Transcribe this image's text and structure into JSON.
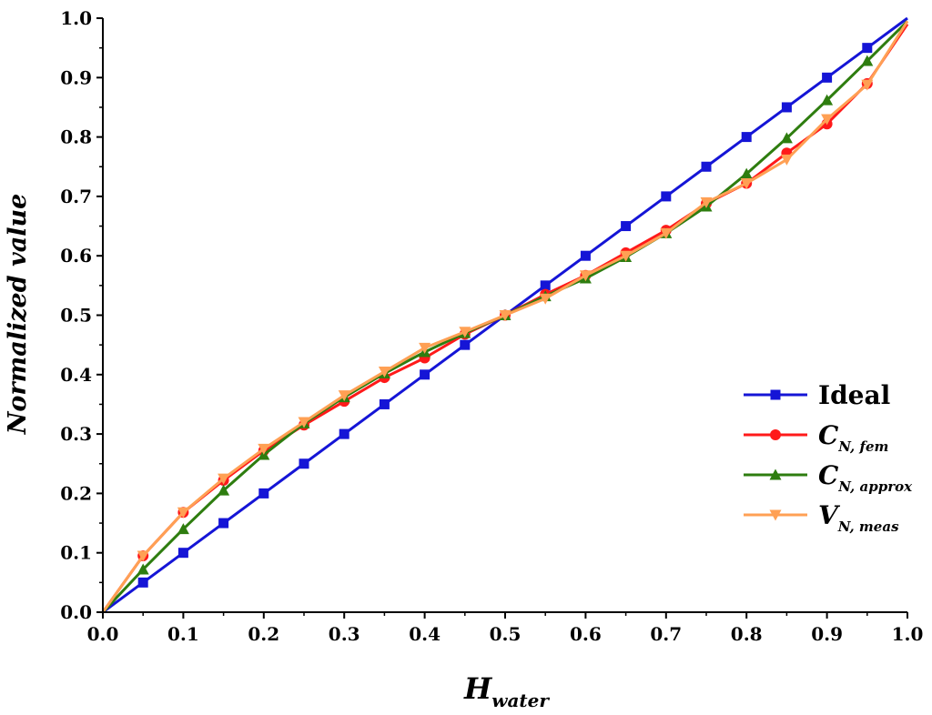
{
  "chart_data": {
    "type": "line",
    "xlabel": {
      "main": "H",
      "sub": "water"
    },
    "ylabel": "Normalized value",
    "xlim": [
      0,
      1
    ],
    "ylim": [
      0,
      1
    ],
    "xticks": [
      "0.0",
      "0.1",
      "0.2",
      "0.3",
      "0.4",
      "0.5",
      "0.6",
      "0.7",
      "0.8",
      "0.9",
      "1.0"
    ],
    "yticks": [
      "0.0",
      "0.1",
      "0.2",
      "0.3",
      "0.4",
      "0.5",
      "0.6",
      "0.7",
      "0.8",
      "0.9",
      "1.0"
    ],
    "grid": false,
    "legend_position": "bottom-right",
    "series": [
      {
        "key": "ideal",
        "legend": {
          "main": "Ideal",
          "sub": ""
        },
        "color": "#1515d6",
        "marker": "square",
        "x": [
          0,
          0.05,
          0.1,
          0.15,
          0.2,
          0.25,
          0.3,
          0.35,
          0.4,
          0.45,
          0.5,
          0.55,
          0.6,
          0.65,
          0.7,
          0.75,
          0.8,
          0.85,
          0.9,
          0.95,
          1.0
        ],
        "y": [
          0,
          0.05,
          0.1,
          0.15,
          0.2,
          0.25,
          0.3,
          0.35,
          0.4,
          0.45,
          0.5,
          0.55,
          0.6,
          0.65,
          0.7,
          0.75,
          0.8,
          0.85,
          0.9,
          0.95,
          1.0
        ]
      },
      {
        "key": "cn-fem",
        "legend": {
          "main": "C",
          "sub": "N, fem"
        },
        "color": "#ff1a1a",
        "marker": "circle",
        "x": [
          0,
          0.05,
          0.1,
          0.15,
          0.2,
          0.25,
          0.3,
          0.35,
          0.4,
          0.45,
          0.5,
          0.55,
          0.6,
          0.65,
          0.7,
          0.75,
          0.8,
          0.85,
          0.9,
          0.95,
          1.0
        ],
        "y": [
          0,
          0.095,
          0.168,
          0.222,
          0.272,
          0.315,
          0.355,
          0.395,
          0.428,
          0.468,
          0.5,
          0.535,
          0.567,
          0.605,
          0.643,
          0.688,
          0.722,
          0.773,
          0.822,
          0.89,
          0.99
        ]
      },
      {
        "key": "cn-approx",
        "legend": {
          "main": "C",
          "sub": "N, approx"
        },
        "color": "#2e7d0f",
        "marker": "triangle-up",
        "x": [
          0,
          0.05,
          0.1,
          0.15,
          0.2,
          0.25,
          0.3,
          0.35,
          0.4,
          0.45,
          0.5,
          0.55,
          0.6,
          0.65,
          0.7,
          0.75,
          0.8,
          0.85,
          0.9,
          0.95,
          1.0
        ],
        "y": [
          0,
          0.072,
          0.14,
          0.205,
          0.265,
          0.318,
          0.362,
          0.402,
          0.438,
          0.47,
          0.5,
          0.532,
          0.562,
          0.598,
          0.638,
          0.683,
          0.738,
          0.798,
          0.862,
          0.928,
          0.995
        ]
      },
      {
        "key": "vn-meas",
        "legend": {
          "main": "V",
          "sub": "N, meas"
        },
        "color": "#ffa054",
        "marker": "triangle-down",
        "x": [
          0,
          0.05,
          0.1,
          0.15,
          0.2,
          0.25,
          0.3,
          0.35,
          0.4,
          0.45,
          0.5,
          0.55,
          0.6,
          0.65,
          0.7,
          0.75,
          0.8,
          0.85,
          0.9,
          0.95,
          1.0
        ],
        "y": [
          0,
          0.095,
          0.168,
          0.225,
          0.275,
          0.32,
          0.365,
          0.405,
          0.445,
          0.472,
          0.5,
          0.528,
          0.567,
          0.6,
          0.638,
          0.69,
          0.722,
          0.762,
          0.83,
          0.888,
          0.995
        ]
      }
    ]
  }
}
